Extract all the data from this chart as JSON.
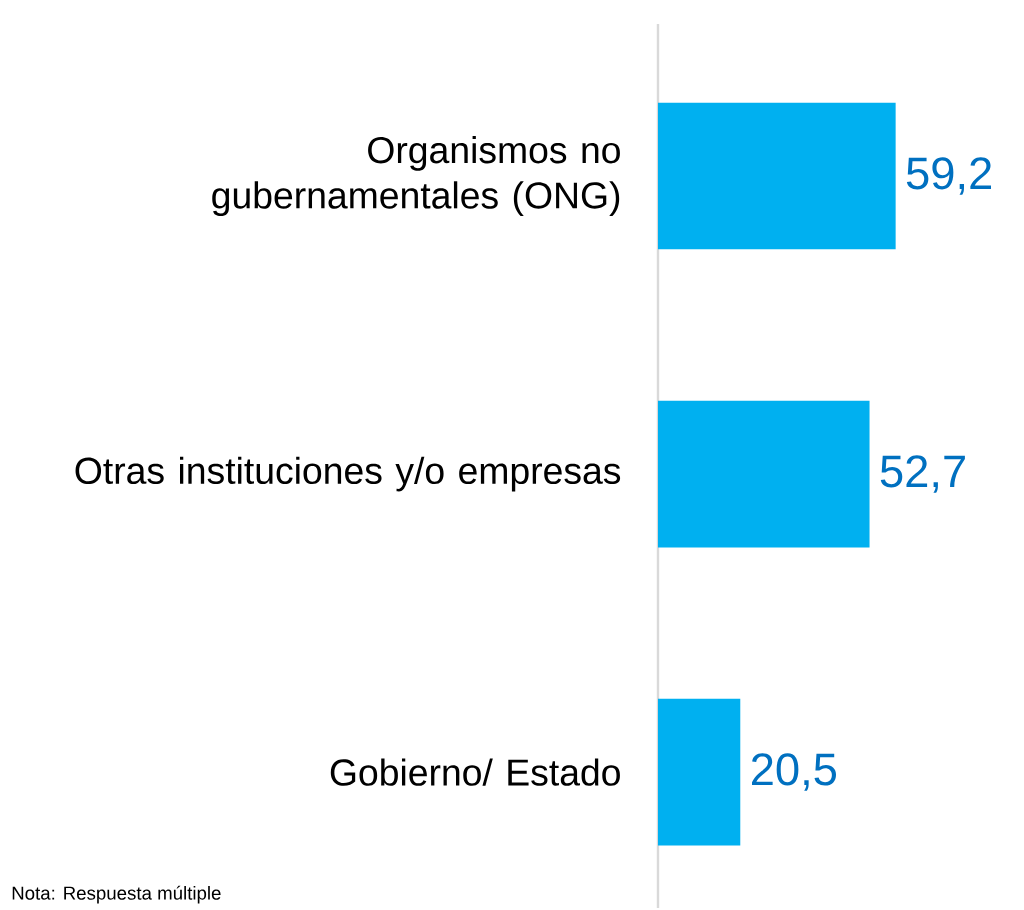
{
  "chart_data": {
    "type": "bar",
    "orientation": "horizontal",
    "categories": [
      "Organismos no gubernamentales (ONG)",
      "Otras instituciones y/o empresas",
      "Gobierno/ Estado"
    ],
    "values": [
      59.2,
      52.7,
      20.5
    ],
    "value_labels": [
      "59,2",
      "52,7",
      "20,5"
    ],
    "color": "#00b0f0",
    "annotations": [
      "Nota: Respuesta múltiple"
    ]
  }
}
